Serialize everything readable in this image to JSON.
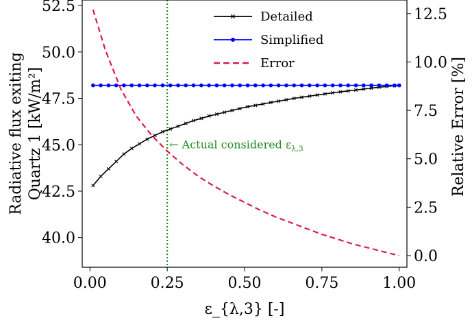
{
  "chart_data": {
    "type": "line",
    "xlabel": "ε_{λ,3} [-]",
    "ylabel_left_line1": "Radiative flux exiting",
    "ylabel_left_line2": "Quartz 1 [kW/m²]",
    "ylabel_right": "Relative Error [%]",
    "xlim": [
      -0.025,
      1.025
    ],
    "ylim_left": [
      38.4,
      52.8
    ],
    "ylim_right": [
      -0.6,
      13.2
    ],
    "x_ticks": [
      0.0,
      0.25,
      0.5,
      0.75,
      1.0
    ],
    "x_tick_labels": [
      "0.00",
      "0.25",
      "0.50",
      "0.75",
      "1.00"
    ],
    "y_left_ticks": [
      40.0,
      42.5,
      45.0,
      47.5,
      50.0,
      52.5
    ],
    "y_left_tick_labels": [
      "40.0",
      "42.5",
      "45.0",
      "47.5",
      "50.0",
      "52.5"
    ],
    "y_right_ticks": [
      0.0,
      2.5,
      5.0,
      7.5,
      10.0,
      12.5
    ],
    "y_right_tick_labels": [
      "0.0",
      "2.5",
      "5.0",
      "7.5",
      "10.0",
      "12.5"
    ],
    "grid": false,
    "legend_position": "top-center",
    "series": [
      {
        "name": "Detailed",
        "axis": "left",
        "color": "#000000",
        "marker": "x",
        "x": [
          0.01,
          0.035,
          0.06,
          0.085,
          0.11,
          0.135,
          0.16,
          0.185,
          0.21,
          0.235,
          0.26,
          0.285,
          0.31,
          0.335,
          0.36,
          0.385,
          0.41,
          0.435,
          0.46,
          0.485,
          0.51,
          0.535,
          0.56,
          0.585,
          0.61,
          0.635,
          0.66,
          0.685,
          0.71,
          0.735,
          0.76,
          0.785,
          0.81,
          0.835,
          0.86,
          0.885,
          0.91,
          0.935,
          0.96,
          0.985,
          1.0
        ],
        "y": [
          42.8,
          43.3,
          43.7,
          44.1,
          44.5,
          44.8,
          45.05,
          45.3,
          45.5,
          45.7,
          45.85,
          46.0,
          46.15,
          46.3,
          46.42,
          46.55,
          46.65,
          46.75,
          46.85,
          46.95,
          47.05,
          47.12,
          47.2,
          47.28,
          47.35,
          47.42,
          47.5,
          47.56,
          47.62,
          47.68,
          47.74,
          47.8,
          47.85,
          47.9,
          47.95,
          48.0,
          48.05,
          48.1,
          48.14,
          48.18,
          48.2
        ]
      },
      {
        "name": "Simplified",
        "axis": "left",
        "color": "#0000ff",
        "marker": "o",
        "x": [
          0.01,
          0.035,
          0.06,
          0.085,
          0.11,
          0.135,
          0.16,
          0.185,
          0.21,
          0.235,
          0.26,
          0.285,
          0.31,
          0.335,
          0.36,
          0.385,
          0.41,
          0.435,
          0.46,
          0.485,
          0.51,
          0.535,
          0.56,
          0.585,
          0.61,
          0.635,
          0.66,
          0.685,
          0.71,
          0.735,
          0.76,
          0.785,
          0.81,
          0.835,
          0.86,
          0.885,
          0.91,
          0.935,
          0.96,
          0.985,
          1.0
        ],
        "y": [
          48.2,
          48.2,
          48.2,
          48.2,
          48.2,
          48.2,
          48.2,
          48.2,
          48.2,
          48.2,
          48.2,
          48.2,
          48.2,
          48.2,
          48.2,
          48.2,
          48.2,
          48.2,
          48.2,
          48.2,
          48.2,
          48.2,
          48.2,
          48.2,
          48.2,
          48.2,
          48.2,
          48.2,
          48.2,
          48.2,
          48.2,
          48.2,
          48.2,
          48.2,
          48.2,
          48.2,
          48.2,
          48.2,
          48.2,
          48.2,
          48.2
        ]
      },
      {
        "name": "Error",
        "axis": "right",
        "color": "#d81b4a",
        "dashed": true,
        "x": [
          0.01,
          0.05,
          0.1,
          0.15,
          0.2,
          0.25,
          0.3,
          0.35,
          0.4,
          0.45,
          0.5,
          0.55,
          0.6,
          0.65,
          0.7,
          0.75,
          0.8,
          0.85,
          0.9,
          0.95,
          1.0
        ],
        "y": [
          12.7,
          10.6,
          8.6,
          7.2,
          6.2,
          5.4,
          4.7,
          4.1,
          3.6,
          3.15,
          2.75,
          2.35,
          2.0,
          1.7,
          1.4,
          1.1,
          0.85,
          0.6,
          0.4,
          0.2,
          0.0
        ]
      }
    ],
    "vline": {
      "x": 0.25,
      "color": "#228B22",
      "dotted": true
    },
    "annotation": {
      "text": "← Actual considered ε",
      "sub": "λ,3",
      "x": 0.25,
      "y_left": 45.0
    }
  }
}
